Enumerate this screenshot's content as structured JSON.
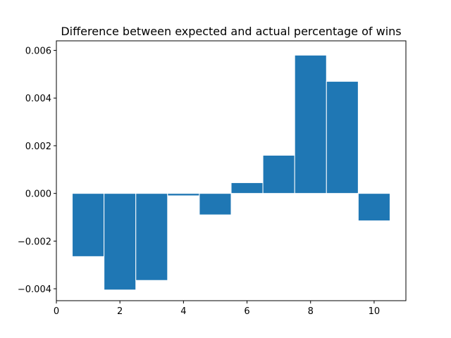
{
  "chart_data": {
    "type": "bar",
    "title": "Difference between expected and actual percentage of wins",
    "xlabel": "",
    "ylabel": "",
    "x": [
      1,
      2,
      3,
      4,
      5,
      6,
      7,
      8,
      9,
      10
    ],
    "values": [
      -0.00265,
      -0.00405,
      -0.00365,
      -0.0001,
      -0.0009,
      0.00045,
      0.0016,
      0.0058,
      0.0047,
      -0.00115
    ],
    "bar_width": 1.0,
    "xlim": [
      0,
      11
    ],
    "ylim": [
      -0.0045,
      0.0064
    ],
    "x_ticks": [
      0,
      2,
      4,
      6,
      8,
      10
    ],
    "x_tick_labels": [
      "0",
      "2",
      "4",
      "6",
      "8",
      "10"
    ],
    "y_ticks": [
      -0.004,
      -0.002,
      0.0,
      0.002,
      0.004,
      0.006
    ],
    "y_tick_labels": [
      "−0.004",
      "−0.002",
      "0.000",
      "0.002",
      "0.004",
      "0.006"
    ],
    "grid": false,
    "bar_color": "#1f77b4",
    "edge_color": "#ffffff"
  }
}
